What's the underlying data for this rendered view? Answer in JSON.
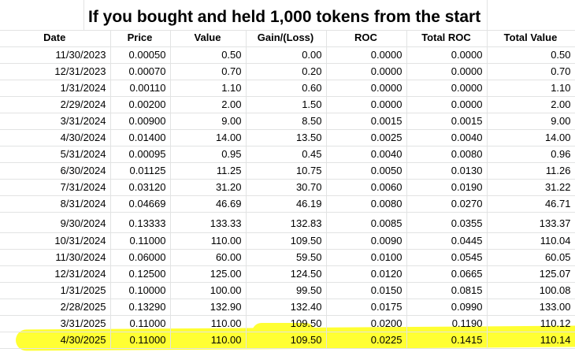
{
  "title": "If you bought and held 1,000 tokens from the start",
  "headers": [
    "Date",
    "Price",
    "Value",
    "Gain/(Loss)",
    "ROC",
    "Total ROC",
    "Total Value"
  ],
  "rows": [
    [
      "11/30/2023",
      "0.00050",
      "0.50",
      "0.00",
      "0.0000",
      "0.0000",
      "0.50"
    ],
    [
      "12/31/2023",
      "0.00070",
      "0.70",
      "0.20",
      "0.0000",
      "0.0000",
      "0.70"
    ],
    [
      "1/31/2024",
      "0.00110",
      "1.10",
      "0.60",
      "0.0000",
      "0.0000",
      "1.10"
    ],
    [
      "2/29/2024",
      "0.00200",
      "2.00",
      "1.50",
      "0.0000",
      "0.0000",
      "2.00"
    ],
    [
      "3/31/2024",
      "0.00900",
      "9.00",
      "8.50",
      "0.0015",
      "0.0015",
      "9.00"
    ],
    [
      "4/30/2024",
      "0.01400",
      "14.00",
      "13.50",
      "0.0025",
      "0.0040",
      "14.00"
    ],
    [
      "5/31/2024",
      "0.00095",
      "0.95",
      "0.45",
      "0.0040",
      "0.0080",
      "0.96"
    ],
    [
      "6/30/2024",
      "0.01125",
      "11.25",
      "10.75",
      "0.0050",
      "0.0130",
      "11.26"
    ],
    [
      "7/31/2024",
      "0.03120",
      "31.20",
      "30.70",
      "0.0060",
      "0.0190",
      "31.22"
    ],
    [
      "8/31/2024",
      "0.04669",
      "46.69",
      "46.19",
      "0.0080",
      "0.0270",
      "46.71"
    ],
    [
      "9/30/2024",
      "0.13333",
      "133.33",
      "132.83",
      "0.0085",
      "0.0355",
      "133.37"
    ],
    [
      "10/31/2024",
      "0.11000",
      "110.00",
      "109.50",
      "0.0090",
      "0.0445",
      "110.04"
    ],
    [
      "11/30/2024",
      "0.06000",
      "60.00",
      "59.50",
      "0.0100",
      "0.0545",
      "60.05"
    ],
    [
      "12/31/2024",
      "0.12500",
      "125.00",
      "124.50",
      "0.0120",
      "0.0665",
      "125.07"
    ],
    [
      "1/31/2025",
      "0.10000",
      "100.00",
      "99.50",
      "0.0150",
      "0.0815",
      "100.08"
    ],
    [
      "2/28/2025",
      "0.13290",
      "132.90",
      "132.40",
      "0.0175",
      "0.0990",
      "133.00"
    ],
    [
      "3/31/2025",
      "0.11000",
      "110.00",
      "109.50",
      "0.0200",
      "0.1190",
      "110.12"
    ],
    [
      "4/30/2025",
      "0.11000",
      "110.00",
      "109.50",
      "0.0225",
      "0.1415",
      "110.14"
    ]
  ],
  "highlight_color": "#ffff33",
  "gridline_color": "#e2e3e3"
}
